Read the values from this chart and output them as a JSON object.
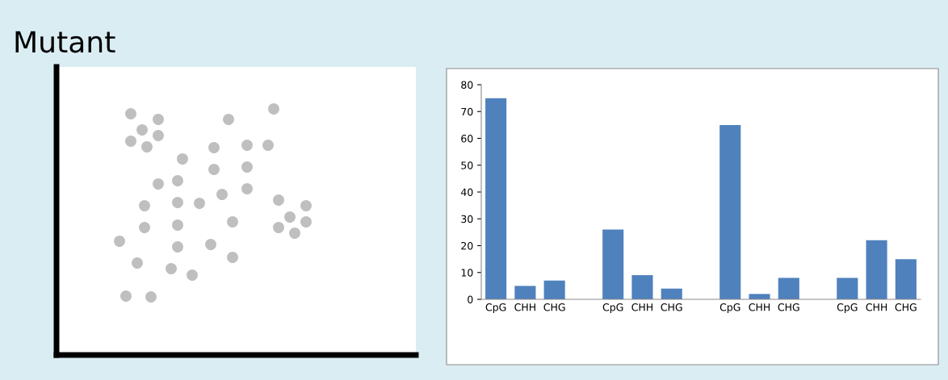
{
  "chart_data": {
    "type": "bar",
    "title": "Mutant",
    "color": "#4f81bd",
    "categories": [
      "CpG",
      "CHH",
      "CHG",
      null,
      "CpG",
      "CHH",
      "CHG",
      null,
      "CpG",
      "CHH",
      "CHG",
      null,
      "CpG",
      "CHH",
      "CHG"
    ],
    "values": [
      75,
      5,
      7,
      null,
      26,
      9,
      4,
      null,
      65,
      2,
      8,
      null,
      8,
      22,
      15
    ],
    "ylim": [
      0,
      80
    ],
    "yticks": [
      0,
      10,
      20,
      30,
      40,
      50,
      60,
      70,
      80
    ]
  }
}
